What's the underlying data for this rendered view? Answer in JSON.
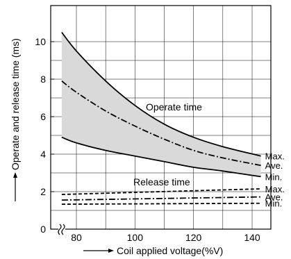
{
  "chart_data": {
    "type": "line",
    "title": "",
    "xlabel": "Coil applied voltage(%V)",
    "ylabel": "Operate and release time (ms)",
    "xlim": [
      73,
      150
    ],
    "ylim": [
      0,
      11
    ],
    "x_break": true,
    "grid": true,
    "x_ticks": [
      80,
      100,
      120,
      140
    ],
    "y_ticks": [
      0,
      2,
      4,
      6,
      8,
      10
    ],
    "groups": [
      {
        "name": "Operate time",
        "shaded_band": true
      },
      {
        "name": "Release time",
        "shaded_band": false
      }
    ],
    "series": [
      {
        "name": "Max.",
        "group": "Operate time",
        "style": "solid",
        "x": [
          75,
          80,
          90,
          100,
          110,
          120,
          130,
          143
        ],
        "y": [
          10.5,
          9.5,
          7.9,
          6.6,
          5.6,
          4.9,
          4.4,
          3.9
        ]
      },
      {
        "name": "Ave.",
        "group": "Operate time",
        "style": "dashdot",
        "x": [
          75,
          80,
          90,
          100,
          110,
          120,
          130,
          143
        ],
        "y": [
          7.9,
          7.3,
          6.3,
          5.5,
          4.8,
          4.2,
          3.8,
          3.4
        ]
      },
      {
        "name": "Min.",
        "group": "Operate time",
        "style": "solid",
        "x": [
          75,
          80,
          90,
          100,
          110,
          120,
          130,
          143
        ],
        "y": [
          4.9,
          4.6,
          4.2,
          3.9,
          3.6,
          3.3,
          3.1,
          2.8
        ]
      },
      {
        "name": "Max.",
        "group": "Release time",
        "style": "dashed",
        "x": [
          75,
          143
        ],
        "y": [
          1.85,
          2.15
        ]
      },
      {
        "name": "Ave.",
        "group": "Release time",
        "style": "dashdot",
        "x": [
          75,
          143
        ],
        "y": [
          1.55,
          1.72
        ]
      },
      {
        "name": "Min.",
        "group": "Release time",
        "style": "dashed",
        "x": [
          75,
          143
        ],
        "y": [
          1.33,
          1.38
        ]
      }
    ],
    "colors": {
      "band": "#d9d9d9",
      "line": "#000000",
      "grid": "#000000"
    }
  }
}
